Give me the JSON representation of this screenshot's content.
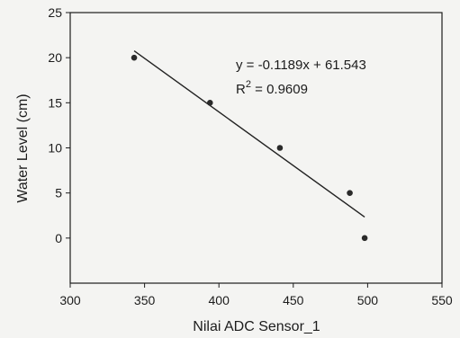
{
  "chart_data": {
    "type": "scatter",
    "xlabel": "Nilai ADC Sensor_1",
    "ylabel": "Water Level  (cm)",
    "xlim": [
      300,
      550
    ],
    "ylim": [
      -5,
      25
    ],
    "x_ticks": [
      300,
      350,
      400,
      450,
      500,
      550
    ],
    "y_ticks": [
      0,
      5,
      10,
      15,
      20,
      25
    ],
    "y_tick_labels": [
      "0",
      "5",
      "10",
      "15",
      "20",
      "25"
    ],
    "x_tick_labels": [
      "300",
      "350",
      "400",
      "450",
      "500",
      "550"
    ],
    "points": [
      {
        "x": 343,
        "y": 20
      },
      {
        "x": 394,
        "y": 15
      },
      {
        "x": 441,
        "y": 10
      },
      {
        "x": 488,
        "y": 5
      },
      {
        "x": 498,
        "y": 0
      }
    ],
    "trendline": {
      "slope": -0.1189,
      "intercept": 61.543,
      "x_range": [
        343,
        498
      ]
    },
    "annotations": {
      "equation": "y = -0.1189x + 61.543",
      "r2_prefix": "R",
      "r2_sup": "2",
      "r2_value": " = 0.9609"
    },
    "grid": false,
    "colors": {
      "marker": "#2a2a2a",
      "line": "#222222",
      "axis": "#1c1c1c"
    }
  }
}
